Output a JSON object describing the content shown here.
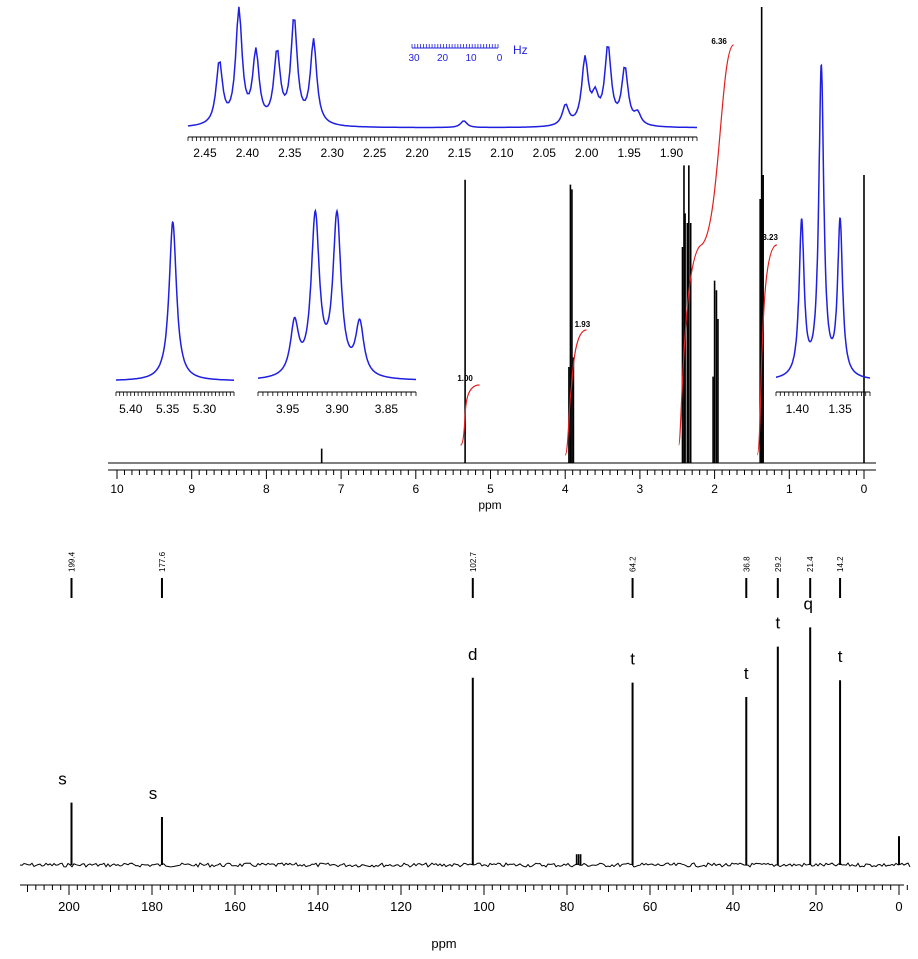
{
  "colors": {
    "trace": "#000000",
    "inset": "#1f1fe0",
    "integral": "#e02020",
    "text": "#000000"
  },
  "h1": {
    "xlabel": "ppm",
    "xlim": [
      10,
      0
    ],
    "ticks": [
      "10",
      "9",
      "8",
      "7",
      "6",
      "5",
      "4",
      "3",
      "2",
      "1",
      "0"
    ],
    "peaks": [
      {
        "shift": 7.26,
        "height": 0.03
      },
      {
        "shift": 5.34,
        "height": 0.59
      },
      {
        "shift": 3.93,
        "height": 0.58
      },
      {
        "shift": 3.91,
        "height": 0.57
      },
      {
        "shift": 3.89,
        "height": 0.22
      },
      {
        "shift": 3.95,
        "height": 0.2
      },
      {
        "shift": 2.43,
        "height": 0.45
      },
      {
        "shift": 2.41,
        "height": 0.62
      },
      {
        "shift": 2.395,
        "height": 0.52
      },
      {
        "shift": 2.365,
        "height": 0.5
      },
      {
        "shift": 2.345,
        "height": 0.62
      },
      {
        "shift": 2.32,
        "height": 0.5
      },
      {
        "shift": 2.0,
        "height": 0.38
      },
      {
        "shift": 1.975,
        "height": 0.36
      },
      {
        "shift": 1.955,
        "height": 0.3
      },
      {
        "shift": 2.02,
        "height": 0.18
      },
      {
        "shift": 1.39,
        "height": 0.55
      },
      {
        "shift": 1.37,
        "height": 0.95
      },
      {
        "shift": 1.35,
        "height": 0.6
      },
      {
        "shift": 0.0,
        "height": 0.6
      }
    ],
    "integrals": [
      {
        "label": "1.00",
        "from": 5.4,
        "to": 5.28
      },
      {
        "label": "1.93",
        "from": 4.0,
        "to": 3.85
      },
      {
        "label": "6.36",
        "from": 2.48,
        "to": 1.88
      },
      {
        "label": "3.23",
        "from": 1.43,
        "to": 1.3
      }
    ],
    "insets": [
      {
        "id": "ch2",
        "ticks": [
          "2.45",
          "2.40",
          "2.35",
          "2.30",
          "2.25",
          "2.20",
          "2.15",
          "2.10",
          "2.05",
          "2.00",
          "1.95",
          "1.90"
        ],
        "range": [
          2.47,
          1.87
        ],
        "peaks": [
          [
            2.433,
            0.55
          ],
          [
            2.41,
            1.0
          ],
          [
            2.39,
            0.62
          ],
          [
            2.365,
            0.62
          ],
          [
            2.345,
            0.92
          ],
          [
            2.322,
            0.74
          ],
          [
            2.145,
            0.06
          ],
          [
            2.025,
            0.18
          ],
          [
            2.002,
            0.58
          ],
          [
            1.99,
            0.22
          ],
          [
            1.975,
            0.68
          ],
          [
            1.955,
            0.5
          ],
          [
            1.94,
            0.1
          ]
        ]
      },
      {
        "id": "ch",
        "ticks": [
          "5.40",
          "5.35",
          "5.30"
        ],
        "range": [
          5.42,
          5.26
        ],
        "peaks": [
          [
            5.343,
            1.0
          ]
        ]
      },
      {
        "id": "och2",
        "ticks": [
          "3.95",
          "3.90",
          "3.85"
        ],
        "range": [
          3.98,
          3.82
        ],
        "peaks": [
          [
            3.943,
            0.33
          ],
          [
            3.922,
            1.0
          ],
          [
            3.9,
            1.0
          ],
          [
            3.877,
            0.33
          ]
        ]
      },
      {
        "id": "ch3",
        "ticks": [
          "1.40",
          "1.35"
        ],
        "range": [
          1.425,
          1.315
        ],
        "peaks": [
          [
            1.395,
            0.5
          ],
          [
            1.372,
            1.0
          ],
          [
            1.35,
            0.5
          ]
        ]
      }
    ],
    "hz_scale": {
      "unit": "Hz",
      "ticks": [
        "30",
        "20",
        "10",
        "0"
      ]
    }
  },
  "c13": {
    "xlabel": "ppm",
    "xlim": [
      210,
      0
    ],
    "ticks": [
      "200",
      "180",
      "160",
      "140",
      "120",
      "100",
      "80",
      "60",
      "40",
      "20",
      "0"
    ],
    "peaks": [
      {
        "shift": 199.4,
        "height": 0.26,
        "label": "199.4",
        "mult": "s"
      },
      {
        "shift": 177.6,
        "height": 0.2,
        "label": "177.6",
        "mult": "s"
      },
      {
        "shift": 102.7,
        "height": 0.78,
        "label": "102.7",
        "mult": "d"
      },
      {
        "shift": 77.2,
        "height": 0.15,
        "label": "",
        "mult": ""
      },
      {
        "shift": 64.2,
        "height": 0.76,
        "label": "64.2",
        "mult": "t"
      },
      {
        "shift": 36.8,
        "height": 0.7,
        "label": "36.8",
        "mult": "t"
      },
      {
        "shift": 29.2,
        "height": 0.91,
        "label": "29.2",
        "mult": "t"
      },
      {
        "shift": 21.4,
        "height": 0.99,
        "label": "21.4",
        "mult": "q"
      },
      {
        "shift": 14.2,
        "height": 0.77,
        "label": "14.2",
        "mult": "t"
      },
      {
        "shift": 0.0,
        "height": 0.12,
        "label": "",
        "mult": ""
      }
    ]
  },
  "chart_data": [
    {
      "type": "line",
      "xlabel": "ppm",
      "xlim": [
        10,
        0
      ],
      "integrals": [
        "1.00",
        "1.93",
        "6.36",
        "3.23"
      ],
      "peak_shifts_ppm": [
        7.26,
        5.34,
        3.91,
        2.37,
        1.98,
        1.37,
        0.0
      ]
    },
    {
      "type": "line",
      "xlabel": "ppm",
      "xlim": [
        210,
        0
      ],
      "x": [
        199.4,
        177.6,
        102.7,
        64.2,
        36.8,
        29.2,
        21.4,
        14.2
      ],
      "labels": [
        "s",
        "s",
        "d",
        "t",
        "t",
        "t",
        "q",
        "t"
      ]
    }
  ]
}
